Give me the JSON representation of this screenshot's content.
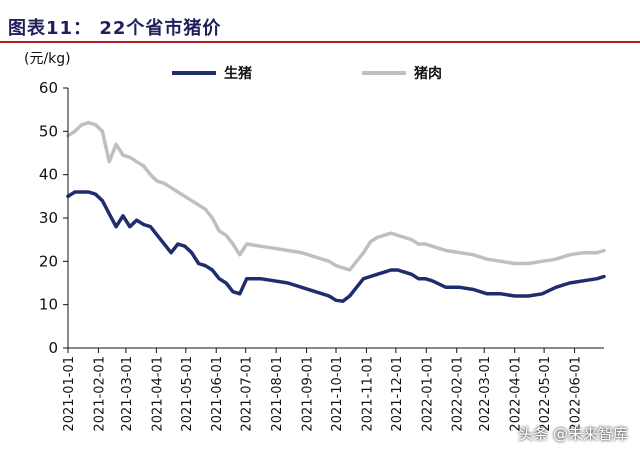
{
  "header": {
    "title": "图表11：  22个省市猪价"
  },
  "watermark": "头条 @未来智库",
  "chart_data": {
    "type": "line",
    "title": "图表11：  22个省市猪价",
    "ylabel": "(元/kg)",
    "xlabel": "",
    "ylim": [
      0,
      60
    ],
    "yticks": [
      0,
      10,
      20,
      30,
      40,
      50,
      60
    ],
    "grid": false,
    "legend_position": "top",
    "x_tick_labels": [
      "2021-01-01",
      "2021-02-01",
      "2021-03-01",
      "2021-04-01",
      "2021-05-01",
      "2021-06-01",
      "2021-07-01",
      "2021-08-01",
      "2021-09-01",
      "2021-10-01",
      "2021-11-01",
      "2021-12-01",
      "2022-01-01",
      "2022-02-01",
      "2022-03-01",
      "2022-04-01",
      "2022-05-01",
      "2022-06-01"
    ],
    "x": [
      "2021-01-01",
      "2021-01-08",
      "2021-01-15",
      "2021-01-22",
      "2021-01-29",
      "2021-02-05",
      "2021-02-12",
      "2021-02-19",
      "2021-02-26",
      "2021-03-05",
      "2021-03-12",
      "2021-03-19",
      "2021-03-26",
      "2021-04-02",
      "2021-04-09",
      "2021-04-16",
      "2021-04-23",
      "2021-04-30",
      "2021-05-07",
      "2021-05-14",
      "2021-05-21",
      "2021-05-28",
      "2021-06-04",
      "2021-06-11",
      "2021-06-18",
      "2021-06-25",
      "2021-07-02",
      "2021-07-16",
      "2021-07-30",
      "2021-08-13",
      "2021-08-27",
      "2021-09-10",
      "2021-09-24",
      "2021-10-01",
      "2021-10-08",
      "2021-10-15",
      "2021-10-22",
      "2021-10-29",
      "2021-11-05",
      "2021-11-12",
      "2021-11-19",
      "2021-11-26",
      "2021-12-03",
      "2021-12-10",
      "2021-12-17",
      "2021-12-24",
      "2021-12-31",
      "2022-01-07",
      "2022-01-21",
      "2022-02-04",
      "2022-02-18",
      "2022-03-04",
      "2022-03-18",
      "2022-04-01",
      "2022-04-15",
      "2022-04-29",
      "2022-05-13",
      "2022-05-27",
      "2022-06-10",
      "2022-06-24",
      "2022-07-01"
    ],
    "series": [
      {
        "name": "生猪",
        "color": "#1f2d6e",
        "values": [
          35,
          36,
          36,
          36,
          35.5,
          34,
          31,
          28,
          30.5,
          28,
          29.5,
          28.5,
          28,
          26,
          24,
          22,
          24,
          23.5,
          22,
          19.5,
          19,
          18,
          16,
          15,
          13,
          12.5,
          16,
          16,
          15.5,
          15,
          14,
          13,
          12,
          11,
          10.8,
          12,
          14,
          16,
          16.5,
          17,
          17.5,
          18,
          18,
          17.5,
          17,
          16,
          16,
          15.5,
          14,
          14,
          13.5,
          12.5,
          12.5,
          12,
          12,
          12.5,
          14,
          15,
          15.5,
          16,
          16.5
        ]
      },
      {
        "name": "猪肉",
        "color": "#bfbfbf",
        "values": [
          49,
          50,
          51.5,
          52,
          51.5,
          50,
          43,
          47,
          44.5,
          44,
          43,
          42,
          40,
          38.5,
          38,
          37,
          36,
          35,
          34,
          33,
          32,
          30,
          27,
          26,
          24,
          21.5,
          24,
          23.5,
          23,
          22.5,
          22,
          21,
          20,
          19,
          18.5,
          18,
          20,
          22,
          24.5,
          25.5,
          26,
          26.5,
          26,
          25.5,
          25,
          24,
          24,
          23.5,
          22.5,
          22,
          21.5,
          20.5,
          20,
          19.5,
          19.5,
          20,
          20.5,
          21.5,
          22,
          22,
          22.5
        ]
      }
    ]
  }
}
